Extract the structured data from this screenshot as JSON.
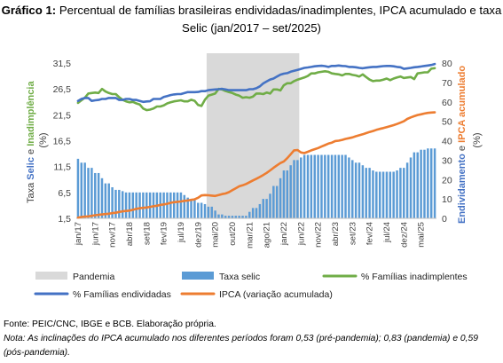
{
  "title_bold": "Gráfico 1:",
  "title_rest": " Percentual de famílias brasileiras endividadas/inadimplentes, IPCA acumulado e taxa Selic (jan/2017 – set/2025)",
  "source": "Fonte: PEIC/CNC, IBGE e BCB. Elaboração própria.",
  "note": "Nota: As inclinações do IPCA acumulado nos diferentes períodos foram 0,53 (pré-pandemia); 0,83 (pandemia) e 0,59 (pós-pandemia).",
  "colors": {
    "pandemia": "#d9d9d9",
    "selic": "#5b9bd5",
    "inadimplentes": "#70ad47",
    "endividadas": "#4472c4",
    "ipca": "#ed7d31"
  },
  "chart_data": {
    "type": "line",
    "title": "",
    "ylabel_left_parts": [
      "Taxa ",
      "Selic",
      " e ",
      "Inadimplência",
      " (%)"
    ],
    "ylabel_right_parts": [
      "Endividamento",
      " e ",
      "IPCA acumulado",
      " (%)"
    ],
    "y_left": {
      "ticks": [
        "1,5",
        "6,5",
        "11,5",
        "16,5",
        "21,5",
        "26,5",
        "31,5"
      ],
      "range": [
        1.5,
        31.5
      ]
    },
    "y_right": {
      "ticks": [
        "0",
        "10",
        "20",
        "30",
        "40",
        "50",
        "60",
        "70",
        "80"
      ],
      "range": [
        0,
        80
      ]
    },
    "x_tick_labels": [
      "jan/17",
      "jun/17",
      "nov/17",
      "abr/18",
      "set/18",
      "fev/19",
      "jul/19",
      "dez/19",
      "mai/20",
      "out/20",
      "mar/21",
      "ago/21",
      "jan/22",
      "jun/22",
      "nov/22",
      "abr/23",
      "set/23",
      "fev/24",
      "jul/24",
      "dez/24",
      "mai/25"
    ],
    "x_start": "jan/2017",
    "n_months": 105,
    "pandemia_period": [
      "mar/2020",
      "mai/2022"
    ],
    "legend": [
      {
        "key": "pandemia",
        "label": "Pandemia",
        "kind": "area"
      },
      {
        "key": "selic",
        "label": "Taxa selic",
        "kind": "bar"
      },
      {
        "key": "inadimplentes",
        "label": "% Famílias inadimplentes",
        "kind": "line"
      },
      {
        "key": "endividadas",
        "label": "% Famílias endividadas",
        "kind": "line"
      },
      {
        "key": "ipca",
        "label": "IPCA (variação acumulada)",
        "kind": "line"
      }
    ],
    "series": [
      {
        "name": "Taxa selic",
        "axis": "left",
        "type": "bar",
        "values": [
          13.0,
          12.25,
          12.25,
          11.25,
          11.25,
          10.25,
          10.25,
          9.25,
          8.25,
          8.25,
          7.5,
          7.0,
          7.0,
          6.75,
          6.5,
          6.5,
          6.5,
          6.5,
          6.5,
          6.5,
          6.5,
          6.5,
          6.5,
          6.5,
          6.5,
          6.5,
          6.5,
          6.5,
          6.5,
          6.5,
          6.5,
          6.0,
          5.5,
          5.0,
          5.0,
          4.5,
          4.5,
          4.25,
          3.75,
          3.75,
          3.0,
          2.25,
          2.25,
          2.0,
          2.0,
          2.0,
          2.0,
          2.0,
          2.0,
          2.0,
          2.75,
          3.5,
          3.5,
          4.25,
          5.25,
          5.25,
          6.25,
          7.75,
          7.75,
          9.25,
          10.75,
          10.75,
          11.75,
          12.75,
          12.75,
          13.25,
          13.75,
          13.75,
          13.75,
          13.75,
          13.75,
          13.75,
          13.75,
          13.75,
          13.75,
          13.75,
          13.75,
          13.75,
          13.75,
          13.25,
          12.75,
          12.25,
          12.25,
          11.75,
          11.25,
          11.25,
          10.75,
          10.5,
          10.5,
          10.5,
          10.5,
          10.5,
          10.5,
          10.75,
          11.25,
          11.25,
          12.25,
          13.25,
          14.25,
          14.25,
          14.75,
          14.75,
          15.0,
          15.0,
          15.0
        ]
      },
      {
        "name": "% Famílias inadimplentes",
        "axis": "left",
        "type": "line",
        "values": [
          23.8,
          24.3,
          24.8,
          25.6,
          25.7,
          25.8,
          25.7,
          26.5,
          26.0,
          25.7,
          25.5,
          25.5,
          24.9,
          24.4,
          24.1,
          23.9,
          24.0,
          23.7,
          23.5,
          22.7,
          22.4,
          22.5,
          22.7,
          23.1,
          23.1,
          23.3,
          23.7,
          23.9,
          24.1,
          24.2,
          24.3,
          24.1,
          24.1,
          24.4,
          24.2,
          23.4,
          23.2,
          24.4,
          25.2,
          25.4,
          25.6,
          26.5,
          26.4,
          26.1,
          25.9,
          25.7,
          25.4,
          25.2,
          24.8,
          24.9,
          24.8,
          25.0,
          25.6,
          25.6,
          25.5,
          25.8,
          25.6,
          26.4,
          26.4,
          26.2,
          27.2,
          27.6,
          27.6,
          28.0,
          28.3,
          28.5,
          28.7,
          29.0,
          29.5,
          29.5,
          29.7,
          29.8,
          29.9,
          29.8,
          29.5,
          29.4,
          29.3,
          29.1,
          29.4,
          29.4,
          29.2,
          29.1,
          28.9,
          29.3,
          28.8,
          28.3,
          28.0,
          28.1,
          28.1,
          28.3,
          28.5,
          28.2,
          28.5,
          28.7,
          28.9,
          28.6,
          28.7,
          28.8,
          28.4,
          29.5,
          29.6,
          29.7,
          29.7,
          30.4,
          30.5
        ]
      },
      {
        "name": "% Famílias endividadas",
        "axis": "right",
        "type": "line",
        "values": [
          60.5,
          61.5,
          62.0,
          62.0,
          60.5,
          60.8,
          61.0,
          61.5,
          61.5,
          62.0,
          62.0,
          62.0,
          61.0,
          61.0,
          61.5,
          61.5,
          61.0,
          61.0,
          60.5,
          60.0,
          60.2,
          60.3,
          61.5,
          61.5,
          61.5,
          62.5,
          63.0,
          63.5,
          63.8,
          64.0,
          64.0,
          64.5,
          65.0,
          65.0,
          65.0,
          65.1,
          65.5,
          65.5,
          66.0,
          66.2,
          66.4,
          66.5,
          66.7,
          66.4,
          66.0,
          66.0,
          66.0,
          66.0,
          66.0,
          66.0,
          66.5,
          66.5,
          67.0,
          68.0,
          69.5,
          70.5,
          71.5,
          72.0,
          73.0,
          74.0,
          74.5,
          74.8,
          75.5,
          76.0,
          76.5,
          77.0,
          77.5,
          77.7,
          78.0,
          78.3,
          78.5,
          78.6,
          78.4,
          78.0,
          78.5,
          78.5,
          78.7,
          78.5,
          78.4,
          78.0,
          78.0,
          77.8,
          77.5,
          77.3,
          77.6,
          77.8,
          78.0,
          78.0,
          78.2,
          78.4,
          78.5,
          78.5,
          78.3,
          78.0,
          77.8,
          77.0,
          77.2,
          77.5,
          77.8,
          78.0,
          78.2,
          78.5,
          78.7,
          79.0,
          79.5
        ]
      },
      {
        "name": "IPCA (variação acumulada)",
        "axis": "right",
        "type": "line",
        "values": [
          0.4,
          0.7,
          0.9,
          1.0,
          1.3,
          1.6,
          1.8,
          2.0,
          2.2,
          2.4,
          2.7,
          2.9,
          3.3,
          3.6,
          3.8,
          4.0,
          4.4,
          4.9,
          5.2,
          5.4,
          5.6,
          5.9,
          6.2,
          6.5,
          6.9,
          7.2,
          7.5,
          8.0,
          8.3,
          8.5,
          8.7,
          9.0,
          9.2,
          9.5,
          9.8,
          10.6,
          11.8,
          12.0,
          11.9,
          11.7,
          11.5,
          12.0,
          12.5,
          12.8,
          13.5,
          14.5,
          15.5,
          16.5,
          17.0,
          17.7,
          18.6,
          19.5,
          20.4,
          21.3,
          22.3,
          23.4,
          24.7,
          26.0,
          27.3,
          28.5,
          29.3,
          31.0,
          33.0,
          35.0,
          35.2,
          33.9,
          33.6,
          34.3,
          35.0,
          35.6,
          36.2,
          37.0,
          37.7,
          38.5,
          39.0,
          39.8,
          40.0,
          40.4,
          40.9,
          41.3,
          41.7,
          42.3,
          42.8,
          43.3,
          43.9,
          44.5,
          45.0,
          45.6,
          46.1,
          46.5,
          47.0,
          47.5,
          48.0,
          48.6,
          49.3,
          50.0,
          51.2,
          52.0,
          52.6,
          53.2,
          53.6,
          54.0,
          54.3,
          54.5,
          54.6
        ]
      }
    ]
  }
}
